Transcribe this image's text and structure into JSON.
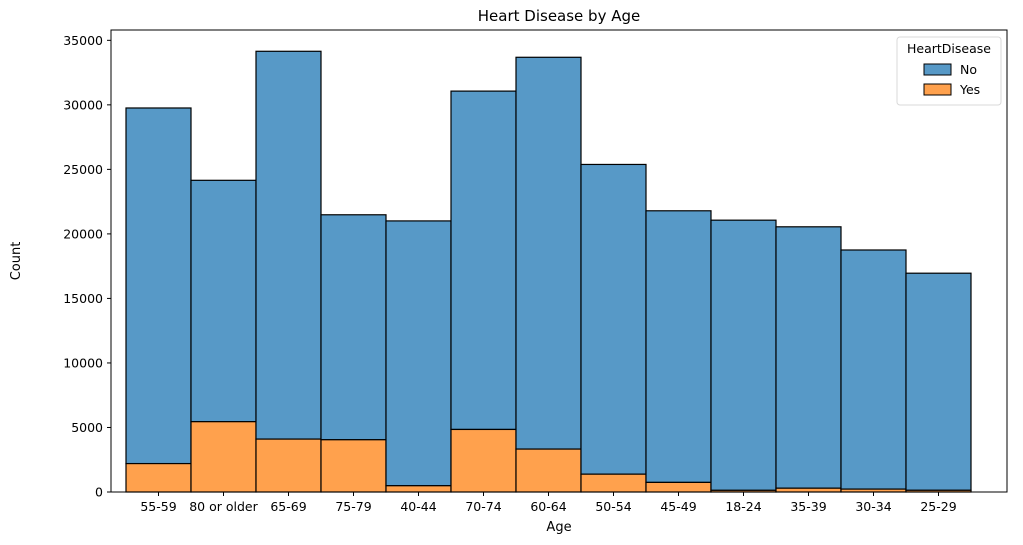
{
  "chart_data": {
    "type": "bar",
    "stacked": true,
    "title": "Heart Disease by Age",
    "xlabel": "Age",
    "ylabel": "Count",
    "categories": [
      "55-59",
      "80 or older",
      "65-69",
      "75-79",
      "40-44",
      "70-74",
      "60-64",
      "50-54",
      "45-49",
      "18-24",
      "35-39",
      "30-34",
      "25-29"
    ],
    "series": [
      {
        "name": "No",
        "color": "#5799c7",
        "values": [
          27555,
          18704,
          30050,
          17433,
          20520,
          26218,
          30359,
          23999,
          21047,
          20934,
          20254,
          18527,
          16822
        ]
      },
      {
        "name": "Yes",
        "color": "#ffa14d",
        "values": [
          2202,
          5449,
          4101,
          4049,
          486,
          4847,
          3327,
          1383,
          744,
          130,
          296,
          226,
          133
        ]
      }
    ],
    "ylim": [
      0,
      35800
    ],
    "yticks": [
      0,
      5000,
      10000,
      15000,
      20000,
      25000,
      30000,
      35000
    ],
    "grid": false,
    "legend": {
      "title": "HeartDisease",
      "placement": "top-right"
    }
  }
}
